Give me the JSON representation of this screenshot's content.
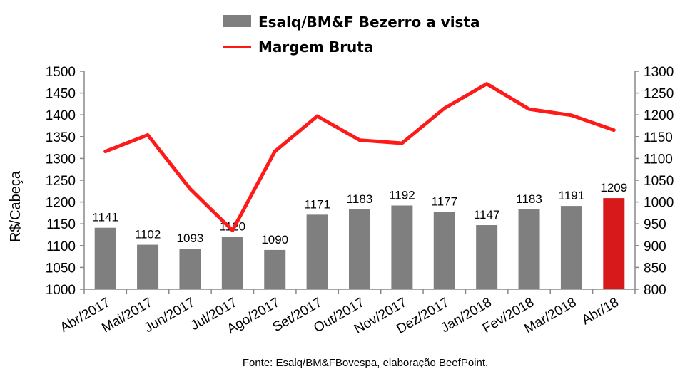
{
  "chart_data": {
    "type": "bar+line",
    "categories": [
      "Abr/2017",
      "Mai/2017",
      "Jun/2017",
      "Jul/2017",
      "Ago/2017",
      "Set/2017",
      "Out/2017",
      "Nov/2017",
      "Dez/2017",
      "Jan/2018",
      "Fev/2018",
      "Mar/2018",
      "Abr/18"
    ],
    "series": [
      {
        "name": "Esalq/BM&F Bezerro a vista",
        "type": "bar",
        "axis": "left",
        "values": [
          1141,
          1102,
          1093,
          1120,
          1090,
          1171,
          1183,
          1192,
          1177,
          1147,
          1183,
          1191,
          1209
        ],
        "color": "#7f7f7f",
        "highlight_color": "#d7191c",
        "highlight_index": 12
      },
      {
        "name": "Margem Bruta",
        "type": "line",
        "axis": "right",
        "values": [
          1116,
          1154,
          1030,
          935,
          1116,
          1197,
          1142,
          1135,
          1215,
          1271,
          1213,
          1199,
          1165
        ],
        "color": "#ff1a1a"
      }
    ],
    "ylabel": "R$/Cabeça",
    "ylim": [
      1000,
      1500
    ],
    "yticks": [
      1000,
      1050,
      1100,
      1150,
      1200,
      1250,
      1300,
      1350,
      1400,
      1450,
      1500
    ],
    "y2lim": [
      800,
      1300
    ],
    "y2ticks": [
      800,
      850,
      900,
      950,
      1000,
      1050,
      1100,
      1150,
      1200,
      1250,
      1300
    ],
    "legend_position": "top",
    "source": "Fonte: Esalq/BM&FBovespa, elaboração BeefPoint."
  }
}
